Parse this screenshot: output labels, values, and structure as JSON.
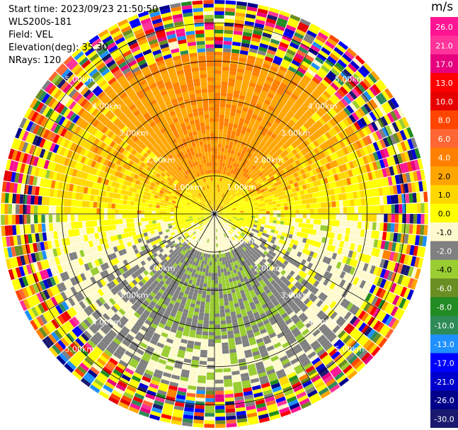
{
  "header": {
    "start_time": "Start time: 2023/09/23 21:50:50",
    "instrument": "WLS200s-181",
    "field": "Field: VEL",
    "elevation": "Elevation(deg): 35.30",
    "nrays": "NRays: 120"
  },
  "chart_data": {
    "type": "heatmap",
    "projection": "polar-ppi",
    "field": "VEL",
    "units": "m/s",
    "n_rays": 120,
    "elevation_deg": 35.3,
    "range_rings_km": [
      1,
      2,
      3,
      4,
      5
    ],
    "range_ring_labels": [
      "1.00km",
      "2.00km",
      "3.00km",
      "4.00km",
      "5.00km"
    ],
    "max_range_km": 5.6,
    "spokes_deg": [
      0,
      30,
      60,
      90,
      120,
      150,
      180,
      210,
      240,
      270,
      300,
      330
    ],
    "colorbar": {
      "title": "m/s",
      "tick_labels": [
        "26.0",
        "21.0",
        "17.0",
        "13.0",
        "10.0",
        "8.0",
        "6.0",
        "4.0",
        "2.0",
        "1.0",
        "0.0",
        "-1.0",
        "-2.0",
        "-4.0",
        "-6.0",
        "-8.0",
        "-10.0",
        "-13.0",
        "-17.0",
        "-21.0",
        "-26.0",
        "-30.0"
      ],
      "colors": [
        "#ff1493",
        "#ff3399",
        "#e6007e",
        "#ff0000",
        "#e60000",
        "#ff4500",
        "#ff6633",
        "#ff8000",
        "#ffa500",
        "#ffd700",
        "#ffff00",
        "#fffacd",
        "#808080",
        "#9acd32",
        "#6b8e23",
        "#228b22",
        "#2e8b57",
        "#1e90ff",
        "#0000ff",
        "#0000cd",
        "#00008b",
        "#191970"
      ]
    },
    "velocity_structure": {
      "inner_north_mean": 2.5,
      "inner_south_mean": -2.8,
      "noise_onset_km_north": 4.2,
      "noise_onset_km_south": 4.6
    }
  }
}
